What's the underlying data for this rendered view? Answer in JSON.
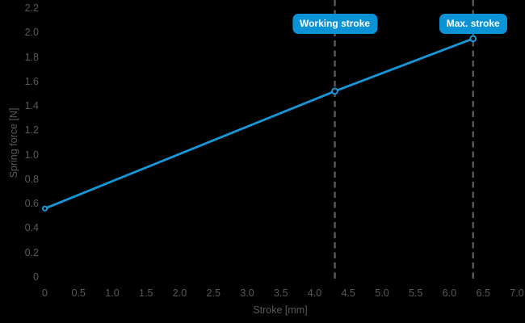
{
  "page": {
    "background": "#000000"
  },
  "chart_data": {
    "type": "line",
    "title": "",
    "xlabel": "Stroke [mm]",
    "ylabel": "Spring force [N]",
    "xlim": [
      0,
      7.0
    ],
    "ylim": [
      0,
      2.2
    ],
    "grid": false,
    "legend": false,
    "x_ticks": {
      "values": [
        0,
        0.5,
        1.0,
        1.5,
        2.0,
        2.5,
        3.0,
        3.5,
        4.0,
        4.5,
        5.0,
        5.5,
        6.0,
        6.5,
        7.0
      ],
      "labels": [
        "0",
        "0.5",
        "1.0",
        "1.5",
        "2.0",
        "2.5",
        "3.0",
        "3.5",
        "4.0",
        "4.5",
        "5.0",
        "5.5",
        "6.0",
        "6.5",
        "7.0"
      ]
    },
    "y_ticks": {
      "values": [
        0,
        0.2,
        0.4,
        0.6,
        0.8,
        1.0,
        1.2,
        1.4,
        1.6,
        1.8,
        2.0,
        2.2
      ],
      "labels": [
        "0",
        "0.2",
        "0.4",
        "0.6",
        "0.8",
        "1.0",
        "1.2",
        "1.4",
        "1.6",
        "1.8",
        "2.0",
        "2.2"
      ]
    },
    "series": [
      {
        "name": "spring-force",
        "color": "#1697d9",
        "marker": "open-circle",
        "points": [
          {
            "x": 0,
            "y": 0.56,
            "name": "start-point"
          },
          {
            "x": 4.3,
            "y": 1.52,
            "name": "working-stroke-point"
          },
          {
            "x": 6.35,
            "y": 1.95,
            "name": "max-stroke-point"
          }
        ]
      }
    ],
    "annotations": [
      {
        "type": "vline",
        "x": 4.3,
        "style": "dashed",
        "label": "Working stroke"
      },
      {
        "type": "vline",
        "x": 6.35,
        "style": "dashed",
        "label": "Max. stroke"
      }
    ],
    "colors": {
      "line": "#1697d9",
      "marker_ring": "#1697d9",
      "marker_fill": "#000000",
      "badge_fill": "#0c93d6",
      "badge_text": "#ffffff",
      "tick_text": "#59595b",
      "axis_title_text": "#59595b",
      "dashed_line": "#59595b",
      "background": "#000000"
    }
  }
}
